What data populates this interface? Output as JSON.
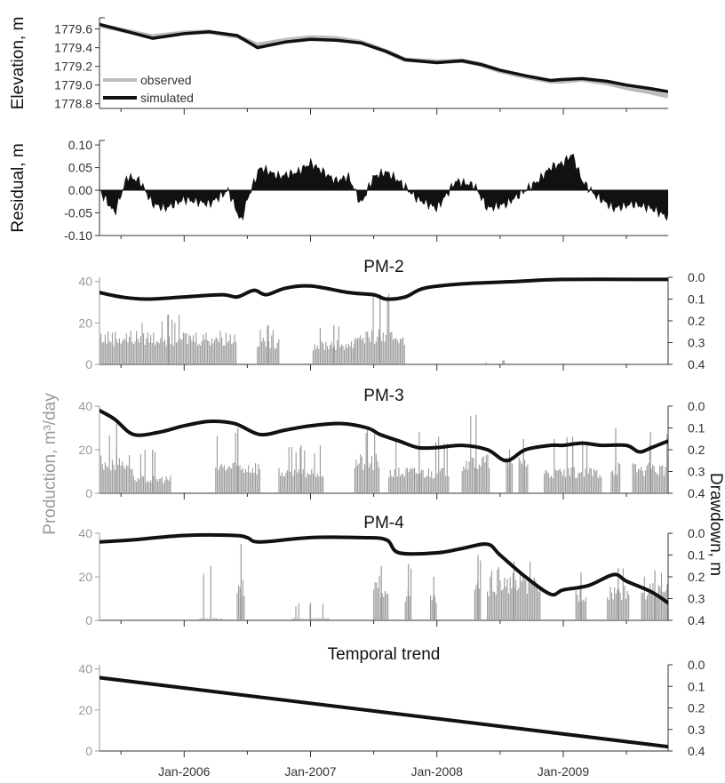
{
  "chart_data": {
    "type": "line",
    "x_tick_labels": [
      "Jan-2006",
      "Jan-2007",
      "Jan-2008",
      "Jan-2009"
    ],
    "x_range": [
      "2005-04",
      "2009-11"
    ],
    "left_axis_label": "Production, m³/day",
    "right_axis_label": "Drawdown, m",
    "panels": [
      {
        "id": "elevation",
        "type": "line",
        "ylabel": "Elevation, m",
        "ylim": [
          1778.75,
          1779.72
        ],
        "yticks": [
          "1779.6",
          "1779.4",
          "1779.2",
          "1779.0",
          "1778.8"
        ],
        "legend": {
          "position": "bottom-left",
          "entries": [
            "observed",
            "simulated"
          ]
        },
        "series": [
          {
            "name": "observed",
            "color": "#bbbbbb",
            "x": [
              2005.33,
              2005.5,
              2005.75,
              2006.0,
              2006.2,
              2006.42,
              2006.58,
              2006.8,
              2007.0,
              2007.2,
              2007.4,
              2007.6,
              2007.75,
              2008.0,
              2008.2,
              2008.35,
              2008.5,
              2008.7,
              2008.9,
              2009.0,
              2009.15,
              2009.35,
              2009.5,
              2009.7,
              2009.83
            ],
            "y": [
              1779.64,
              1779.59,
              1779.52,
              1779.56,
              1779.57,
              1779.52,
              1779.43,
              1779.48,
              1779.51,
              1779.5,
              1779.46,
              1779.36,
              1779.27,
              1779.25,
              1779.26,
              1779.22,
              1779.15,
              1779.09,
              1779.04,
              1779.04,
              1779.06,
              1779.02,
              1778.97,
              1778.92,
              1778.88
            ]
          },
          {
            "name": "simulated",
            "color": "#111111",
            "x": [
              2005.33,
              2005.5,
              2005.75,
              2006.0,
              2006.2,
              2006.42,
              2006.58,
              2006.8,
              2007.0,
              2007.2,
              2007.4,
              2007.6,
              2007.75,
              2008.0,
              2008.2,
              2008.35,
              2008.5,
              2008.7,
              2008.9,
              2009.0,
              2009.15,
              2009.35,
              2009.5,
              2009.7,
              2009.83
            ],
            "y": [
              1779.65,
              1779.59,
              1779.5,
              1779.55,
              1779.57,
              1779.53,
              1779.4,
              1779.46,
              1779.49,
              1779.48,
              1779.45,
              1779.36,
              1779.27,
              1779.24,
              1779.26,
              1779.22,
              1779.16,
              1779.1,
              1779.05,
              1779.06,
              1779.07,
              1779.04,
              1779.0,
              1778.96,
              1778.93
            ]
          }
        ]
      },
      {
        "id": "residual",
        "type": "area",
        "ylabel": "Residual, m",
        "ylim": [
          -0.1,
          0.11
        ],
        "yticks": [
          "0.10",
          "0.05",
          "0.00",
          "-0.05",
          "-0.10"
        ],
        "series": [
          {
            "name": "",
            "color": "#111111",
            "x": [
              2005.33,
              2005.45,
              2005.55,
              2005.65,
              2005.75,
              2005.85,
              2006.0,
              2006.2,
              2006.35,
              2006.45,
              2006.5,
              2006.6,
              2006.75,
              2006.9,
              2007.0,
              2007.1,
              2007.2,
              2007.3,
              2007.4,
              2007.5,
              2007.6,
              2007.7,
              2007.85,
              2008.0,
              2008.15,
              2008.3,
              2008.4,
              2008.55,
              2008.7,
              2008.8,
              2008.9,
              2009.0,
              2009.07,
              2009.15,
              2009.25,
              2009.4,
              2009.55,
              2009.7,
              2009.83
            ],
            "y": [
              0.0,
              -0.05,
              0.03,
              0.02,
              -0.03,
              -0.04,
              -0.02,
              -0.03,
              0.0,
              -0.07,
              -0.02,
              0.05,
              0.03,
              0.04,
              0.06,
              0.04,
              0.02,
              0.03,
              -0.03,
              0.03,
              0.04,
              0.02,
              -0.02,
              -0.04,
              0.02,
              0.01,
              -0.04,
              -0.03,
              0.0,
              0.02,
              0.05,
              0.06,
              0.08,
              0.02,
              -0.01,
              -0.04,
              -0.03,
              -0.04,
              -0.06
            ]
          }
        ]
      },
      {
        "id": "pm2",
        "title": "PM-2",
        "type": "bar",
        "ylim": [
          0,
          42
        ],
        "yticks": [
          "40",
          "20",
          "0"
        ],
        "right_ylim": [
          0.0,
          0.4
        ],
        "right_yticks": [
          "0.0",
          "0.1",
          "0.2",
          "0.3",
          "0.4"
        ],
        "production": [
          {
            "start": 2005.33,
            "end": 2006.42,
            "level": 16,
            "peak": 24
          },
          {
            "start": 2006.58,
            "end": 2006.75,
            "level": 14,
            "peak": 19
          },
          {
            "start": 2007.02,
            "end": 2007.35,
            "level": 12,
            "peak": 19
          },
          {
            "start": 2007.35,
            "end": 2007.75,
            "level": 17,
            "peak": 34
          },
          {
            "start": 2008.38,
            "end": 2008.4,
            "level": 0.5,
            "peak": 1
          },
          {
            "start": 2008.52,
            "end": 2008.54,
            "level": 2,
            "peak": 2
          }
        ],
        "drawdown": {
          "name": "drawdown",
          "x": [
            2005.33,
            2005.5,
            2005.7,
            2006.0,
            2006.3,
            2006.42,
            2006.55,
            2006.65,
            2006.8,
            2007.0,
            2007.3,
            2007.5,
            2007.6,
            2007.75,
            2007.9,
            2008.2,
            2008.6,
            2009.0,
            2009.83
          ],
          "y": [
            0.07,
            0.09,
            0.1,
            0.09,
            0.08,
            0.09,
            0.06,
            0.08,
            0.05,
            0.04,
            0.07,
            0.08,
            0.1,
            0.09,
            0.05,
            0.03,
            0.02,
            0.01,
            0.01
          ]
        }
      },
      {
        "id": "pm3",
        "title": "PM-3",
        "type": "bar",
        "ylim": [
          0,
          40
        ],
        "yticks": [
          "40",
          "20",
          "0"
        ],
        "right_ylim": [
          0.0,
          0.4
        ],
        "right_yticks": [
          "0.0",
          "0.1",
          "0.2",
          "0.3",
          "0.4"
        ],
        "production": [
          {
            "start": 2005.33,
            "end": 2005.6,
            "level": 18,
            "peak": 32
          },
          {
            "start": 2005.6,
            "end": 2005.9,
            "level": 8,
            "peak": 20
          },
          {
            "start": 2006.25,
            "end": 2006.6,
            "level": 15,
            "peak": 30
          },
          {
            "start": 2006.75,
            "end": 2007.1,
            "level": 12,
            "peak": 22
          },
          {
            "start": 2007.35,
            "end": 2007.55,
            "level": 18,
            "peak": 30
          },
          {
            "start": 2007.62,
            "end": 2008.1,
            "level": 12,
            "peak": 28
          },
          {
            "start": 2008.2,
            "end": 2008.42,
            "level": 18,
            "peak": 36
          },
          {
            "start": 2008.55,
            "end": 2008.6,
            "level": 15,
            "peak": 20
          },
          {
            "start": 2008.65,
            "end": 2008.72,
            "level": 18,
            "peak": 25
          },
          {
            "start": 2008.85,
            "end": 2009.3,
            "level": 12,
            "peak": 26
          },
          {
            "start": 2009.38,
            "end": 2009.45,
            "level": 15,
            "peak": 30
          },
          {
            "start": 2009.55,
            "end": 2009.83,
            "level": 14,
            "peak": 28
          }
        ],
        "drawdown": {
          "name": "drawdown",
          "x": [
            2005.33,
            2005.45,
            2005.6,
            2005.8,
            2006.0,
            2006.2,
            2006.4,
            2006.6,
            2006.8,
            2007.0,
            2007.25,
            2007.45,
            2007.55,
            2007.7,
            2007.85,
            2008.0,
            2008.2,
            2008.4,
            2008.55,
            2008.7,
            2008.9,
            2009.0,
            2009.15,
            2009.3,
            2009.5,
            2009.6,
            2009.7,
            2009.83
          ],
          "y": [
            0.02,
            0.06,
            0.13,
            0.12,
            0.09,
            0.07,
            0.08,
            0.13,
            0.11,
            0.09,
            0.08,
            0.1,
            0.13,
            0.16,
            0.19,
            0.19,
            0.18,
            0.2,
            0.25,
            0.2,
            0.18,
            0.18,
            0.17,
            0.18,
            0.18,
            0.21,
            0.19,
            0.16
          ]
        }
      },
      {
        "id": "pm4",
        "title": "PM-4",
        "type": "bar",
        "ylim": [
          0,
          40
        ],
        "yticks": [
          "40",
          "20",
          "0"
        ],
        "right_ylim": [
          0.0,
          0.4
        ],
        "right_yticks": [
          "0.0",
          "0.1",
          "0.2",
          "0.3",
          "0.4"
        ],
        "production": [
          {
            "start": 2006.12,
            "end": 2006.3,
            "level": 1,
            "peak": 25
          },
          {
            "start": 2006.42,
            "end": 2006.48,
            "level": 20,
            "peak": 35
          },
          {
            "start": 2006.85,
            "end": 2007.15,
            "level": 1,
            "peak": 8
          },
          {
            "start": 2007.5,
            "end": 2007.62,
            "level": 18,
            "peak": 25
          },
          {
            "start": 2007.75,
            "end": 2007.8,
            "level": 15,
            "peak": 26
          },
          {
            "start": 2007.95,
            "end": 2008.0,
            "level": 12,
            "peak": 20
          },
          {
            "start": 2008.3,
            "end": 2008.35,
            "level": 18,
            "peak": 30
          },
          {
            "start": 2008.4,
            "end": 2008.82,
            "level": 20,
            "peak": 27
          },
          {
            "start": 2009.1,
            "end": 2009.18,
            "level": 15,
            "peak": 22
          },
          {
            "start": 2009.35,
            "end": 2009.52,
            "level": 17,
            "peak": 24
          },
          {
            "start": 2009.62,
            "end": 2009.83,
            "level": 17,
            "peak": 23
          }
        ],
        "drawdown": {
          "name": "drawdown",
          "x": [
            2005.33,
            2005.6,
            2006.0,
            2006.4,
            2006.5,
            2006.6,
            2007.0,
            2007.4,
            2007.6,
            2007.7,
            2008.0,
            2008.2,
            2008.4,
            2008.5,
            2008.7,
            2008.9,
            2009.0,
            2009.2,
            2009.4,
            2009.5,
            2009.7,
            2009.83
          ],
          "y": [
            0.04,
            0.03,
            0.01,
            0.01,
            0.02,
            0.04,
            0.02,
            0.02,
            0.03,
            0.09,
            0.09,
            0.07,
            0.05,
            0.1,
            0.2,
            0.28,
            0.26,
            0.24,
            0.19,
            0.22,
            0.27,
            0.32
          ]
        }
      },
      {
        "id": "trend",
        "title": "Temporal trend",
        "type": "line",
        "ylim": [
          0,
          42
        ],
        "yticks": [
          "40",
          "20",
          "0"
        ],
        "right_ylim": [
          0.0,
          0.4
        ],
        "right_yticks": [
          "0.0",
          "0.1",
          "0.2",
          "0.3",
          "0.4"
        ],
        "drawdown": {
          "name": "trend",
          "x": [
            2005.33,
            2009.83
          ],
          "y": [
            0.06,
            0.38
          ]
        }
      }
    ]
  }
}
